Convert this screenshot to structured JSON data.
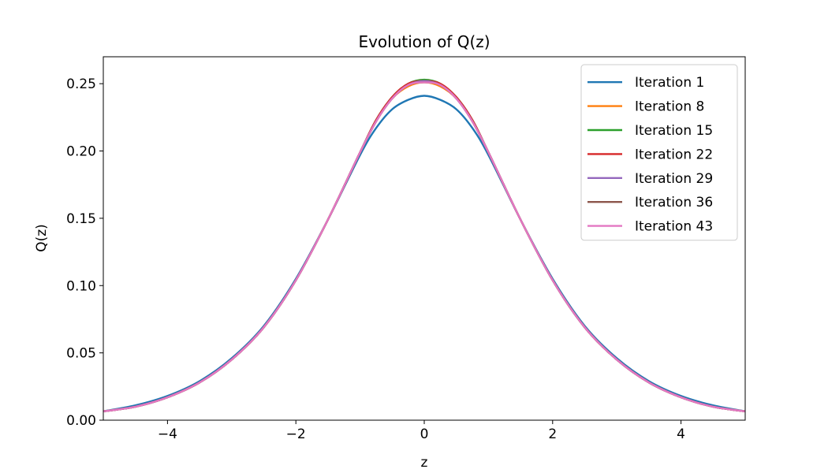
{
  "chart_data": {
    "type": "line",
    "title": "Evolution of Q(z)",
    "xlabel": "z",
    "ylabel": "Q(z)",
    "xlim": [
      -5,
      5
    ],
    "ylim": [
      0,
      0.27
    ],
    "xticks": [
      -4,
      -2,
      0,
      2,
      4
    ],
    "xtick_labels": [
      "−4",
      "−2",
      "0",
      "2",
      "4"
    ],
    "yticks": [
      0.0,
      0.05,
      0.1,
      0.15,
      0.2,
      0.25
    ],
    "ytick_labels": [
      "0.00",
      "0.05",
      "0.10",
      "0.15",
      "0.20",
      "0.25"
    ],
    "grid": false,
    "legend_position": "top-right",
    "x": [
      -5.0,
      -4.5,
      -4.0,
      -3.5,
      -3.0,
      -2.5,
      -2.0,
      -1.5,
      -1.0,
      -0.75,
      -0.5,
      -0.25,
      0.0,
      0.25,
      0.5,
      0.75,
      1.0,
      1.5,
      2.0,
      2.5,
      3.0,
      3.5,
      4.0,
      4.5,
      5.0
    ],
    "series": [
      {
        "name": "Iteration 1",
        "color": "#1f77b4",
        "values": [
          0.0066,
          0.011,
          0.018,
          0.029,
          0.046,
          0.07,
          0.105,
          0.149,
          0.197,
          0.217,
          0.231,
          0.238,
          0.241,
          0.238,
          0.231,
          0.217,
          0.197,
          0.149,
          0.105,
          0.07,
          0.046,
          0.029,
          0.018,
          0.011,
          0.0066
        ]
      },
      {
        "name": "Iteration 8",
        "color": "#ff7f0e",
        "values": [
          0.0066,
          0.01,
          0.017,
          0.028,
          0.045,
          0.069,
          0.104,
          0.149,
          0.199,
          0.222,
          0.239,
          0.248,
          0.251,
          0.248,
          0.239,
          0.222,
          0.199,
          0.149,
          0.104,
          0.069,
          0.045,
          0.028,
          0.017,
          0.01,
          0.0066
        ]
      },
      {
        "name": "Iteration 15",
        "color": "#2ca02c",
        "values": [
          0.0066,
          0.01,
          0.017,
          0.028,
          0.045,
          0.069,
          0.104,
          0.149,
          0.199,
          0.223,
          0.24,
          0.25,
          0.253,
          0.25,
          0.24,
          0.223,
          0.199,
          0.149,
          0.104,
          0.069,
          0.045,
          0.028,
          0.017,
          0.01,
          0.0066
        ]
      },
      {
        "name": "Iteration 22",
        "color": "#d62728",
        "values": [
          0.0066,
          0.01,
          0.017,
          0.028,
          0.045,
          0.069,
          0.104,
          0.149,
          0.199,
          0.223,
          0.24,
          0.25,
          0.252,
          0.25,
          0.24,
          0.223,
          0.199,
          0.149,
          0.104,
          0.069,
          0.045,
          0.028,
          0.017,
          0.01,
          0.0066
        ]
      },
      {
        "name": "Iteration 29",
        "color": "#9467bd",
        "values": [
          0.0066,
          0.01,
          0.017,
          0.028,
          0.045,
          0.069,
          0.104,
          0.149,
          0.199,
          0.222,
          0.239,
          0.249,
          0.252,
          0.249,
          0.239,
          0.222,
          0.199,
          0.149,
          0.104,
          0.069,
          0.045,
          0.028,
          0.017,
          0.01,
          0.0066
        ]
      },
      {
        "name": "Iteration 36",
        "color": "#8c564b",
        "values": [
          0.0066,
          0.01,
          0.017,
          0.028,
          0.045,
          0.069,
          0.104,
          0.149,
          0.199,
          0.222,
          0.239,
          0.249,
          0.251,
          0.249,
          0.239,
          0.222,
          0.199,
          0.149,
          0.104,
          0.069,
          0.045,
          0.028,
          0.017,
          0.01,
          0.0066
        ]
      },
      {
        "name": "Iteration 43",
        "color": "#e377c2",
        "values": [
          0.0066,
          0.01,
          0.017,
          0.028,
          0.045,
          0.069,
          0.104,
          0.149,
          0.199,
          0.222,
          0.239,
          0.249,
          0.251,
          0.249,
          0.239,
          0.222,
          0.199,
          0.149,
          0.104,
          0.069,
          0.045,
          0.028,
          0.017,
          0.01,
          0.0066
        ]
      }
    ]
  }
}
